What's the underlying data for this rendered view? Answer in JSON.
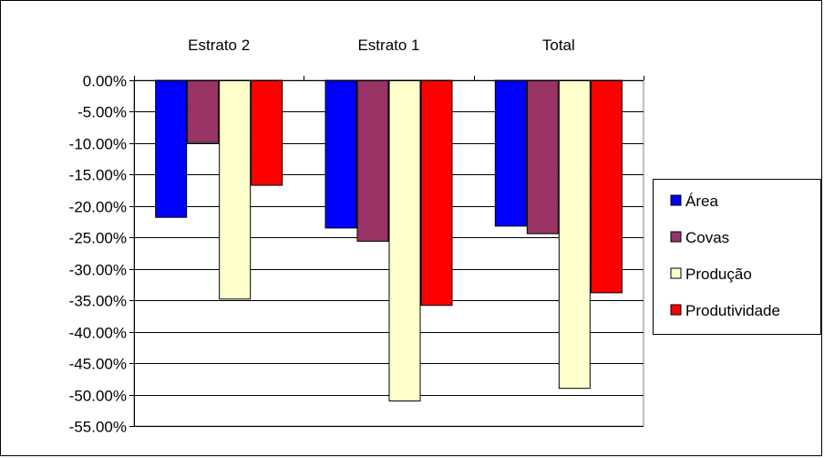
{
  "chart_data": {
    "type": "bar",
    "categories": [
      "Estrato 2",
      "Estrato 1",
      "Total"
    ],
    "series": [
      {
        "name": "Área",
        "color": "#0000ff",
        "values": [
          -21.8,
          -23.5,
          -23.2
        ]
      },
      {
        "name": "Covas",
        "color": "#993366",
        "values": [
          -9.9,
          -25.6,
          -24.4
        ]
      },
      {
        "name": "Produção",
        "color": "#ffffcc",
        "values": [
          -34.8,
          -51.0,
          -49.0
        ]
      },
      {
        "name": "Produtividade",
        "color": "#ff0000",
        "values": [
          -16.7,
          -35.8,
          -33.8
        ]
      }
    ],
    "yticks": [
      "0.00%",
      "-5.00%",
      "-10.00%",
      "-15.00%",
      "-20.00%",
      "-25.00%",
      "-30.00%",
      "-35.00%",
      "-40.00%",
      "-45.00%",
      "-50.00%",
      "-55.00%"
    ],
    "ylim": [
      -55,
      0
    ],
    "grid": true,
    "legend_position": "right",
    "category_axis_position": "top"
  }
}
